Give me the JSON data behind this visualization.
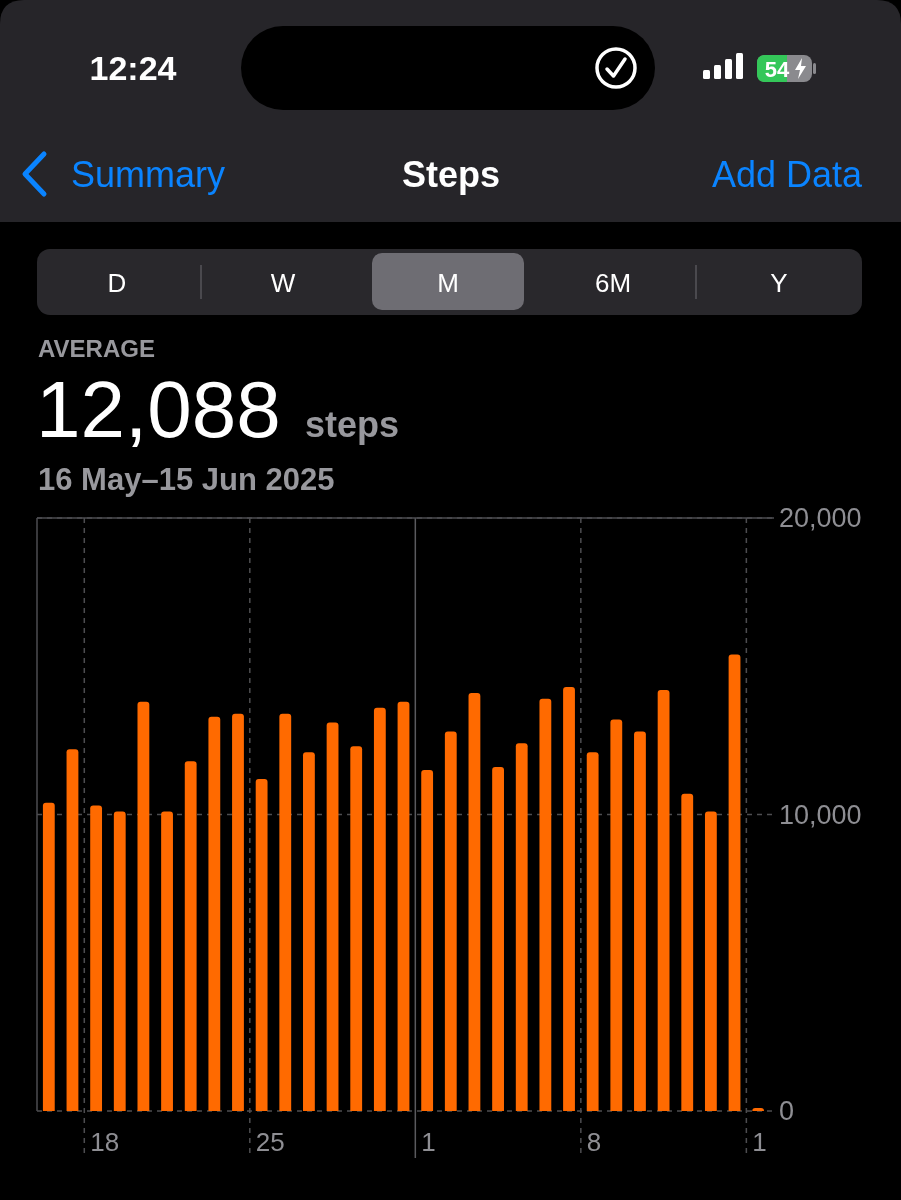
{
  "chart_data": {
    "type": "bar",
    "title": "Steps",
    "subtitle": "16 May–15 Jun 2025",
    "annotations": [
      "12:24",
      "54",
      "Summary",
      "Add Data",
      "D",
      "W",
      "M",
      "6M",
      "Y",
      "AVERAGE",
      "12,088",
      "steps"
    ],
    "categories": [
      null,
      null,
      "18",
      null,
      null,
      null,
      null,
      null,
      null,
      "25",
      null,
      null,
      null,
      null,
      null,
      null,
      "1",
      null,
      null,
      null,
      null,
      null,
      null,
      "8",
      null,
      null,
      null,
      null,
      null,
      null,
      "1"
    ],
    "values": [
      10400,
      12200,
      10300,
      10100,
      13800,
      10100,
      11800,
      13300,
      13400,
      11200,
      13400,
      12100,
      13100,
      12300,
      13600,
      13800,
      11500,
      12800,
      14100,
      11600,
      12400,
      13900,
      14300,
      12100,
      13200,
      12800,
      14200,
      10700,
      10100,
      15400,
      100
    ],
    "color": "#ff6a00",
    "ylim": [
      0,
      20000
    ],
    "yticks": [
      0,
      {
        "value": 10000,
        "label": "10,000"
      },
      {
        "value": 20000,
        "label": "20,000"
      }
    ],
    "grid": true
  }
}
